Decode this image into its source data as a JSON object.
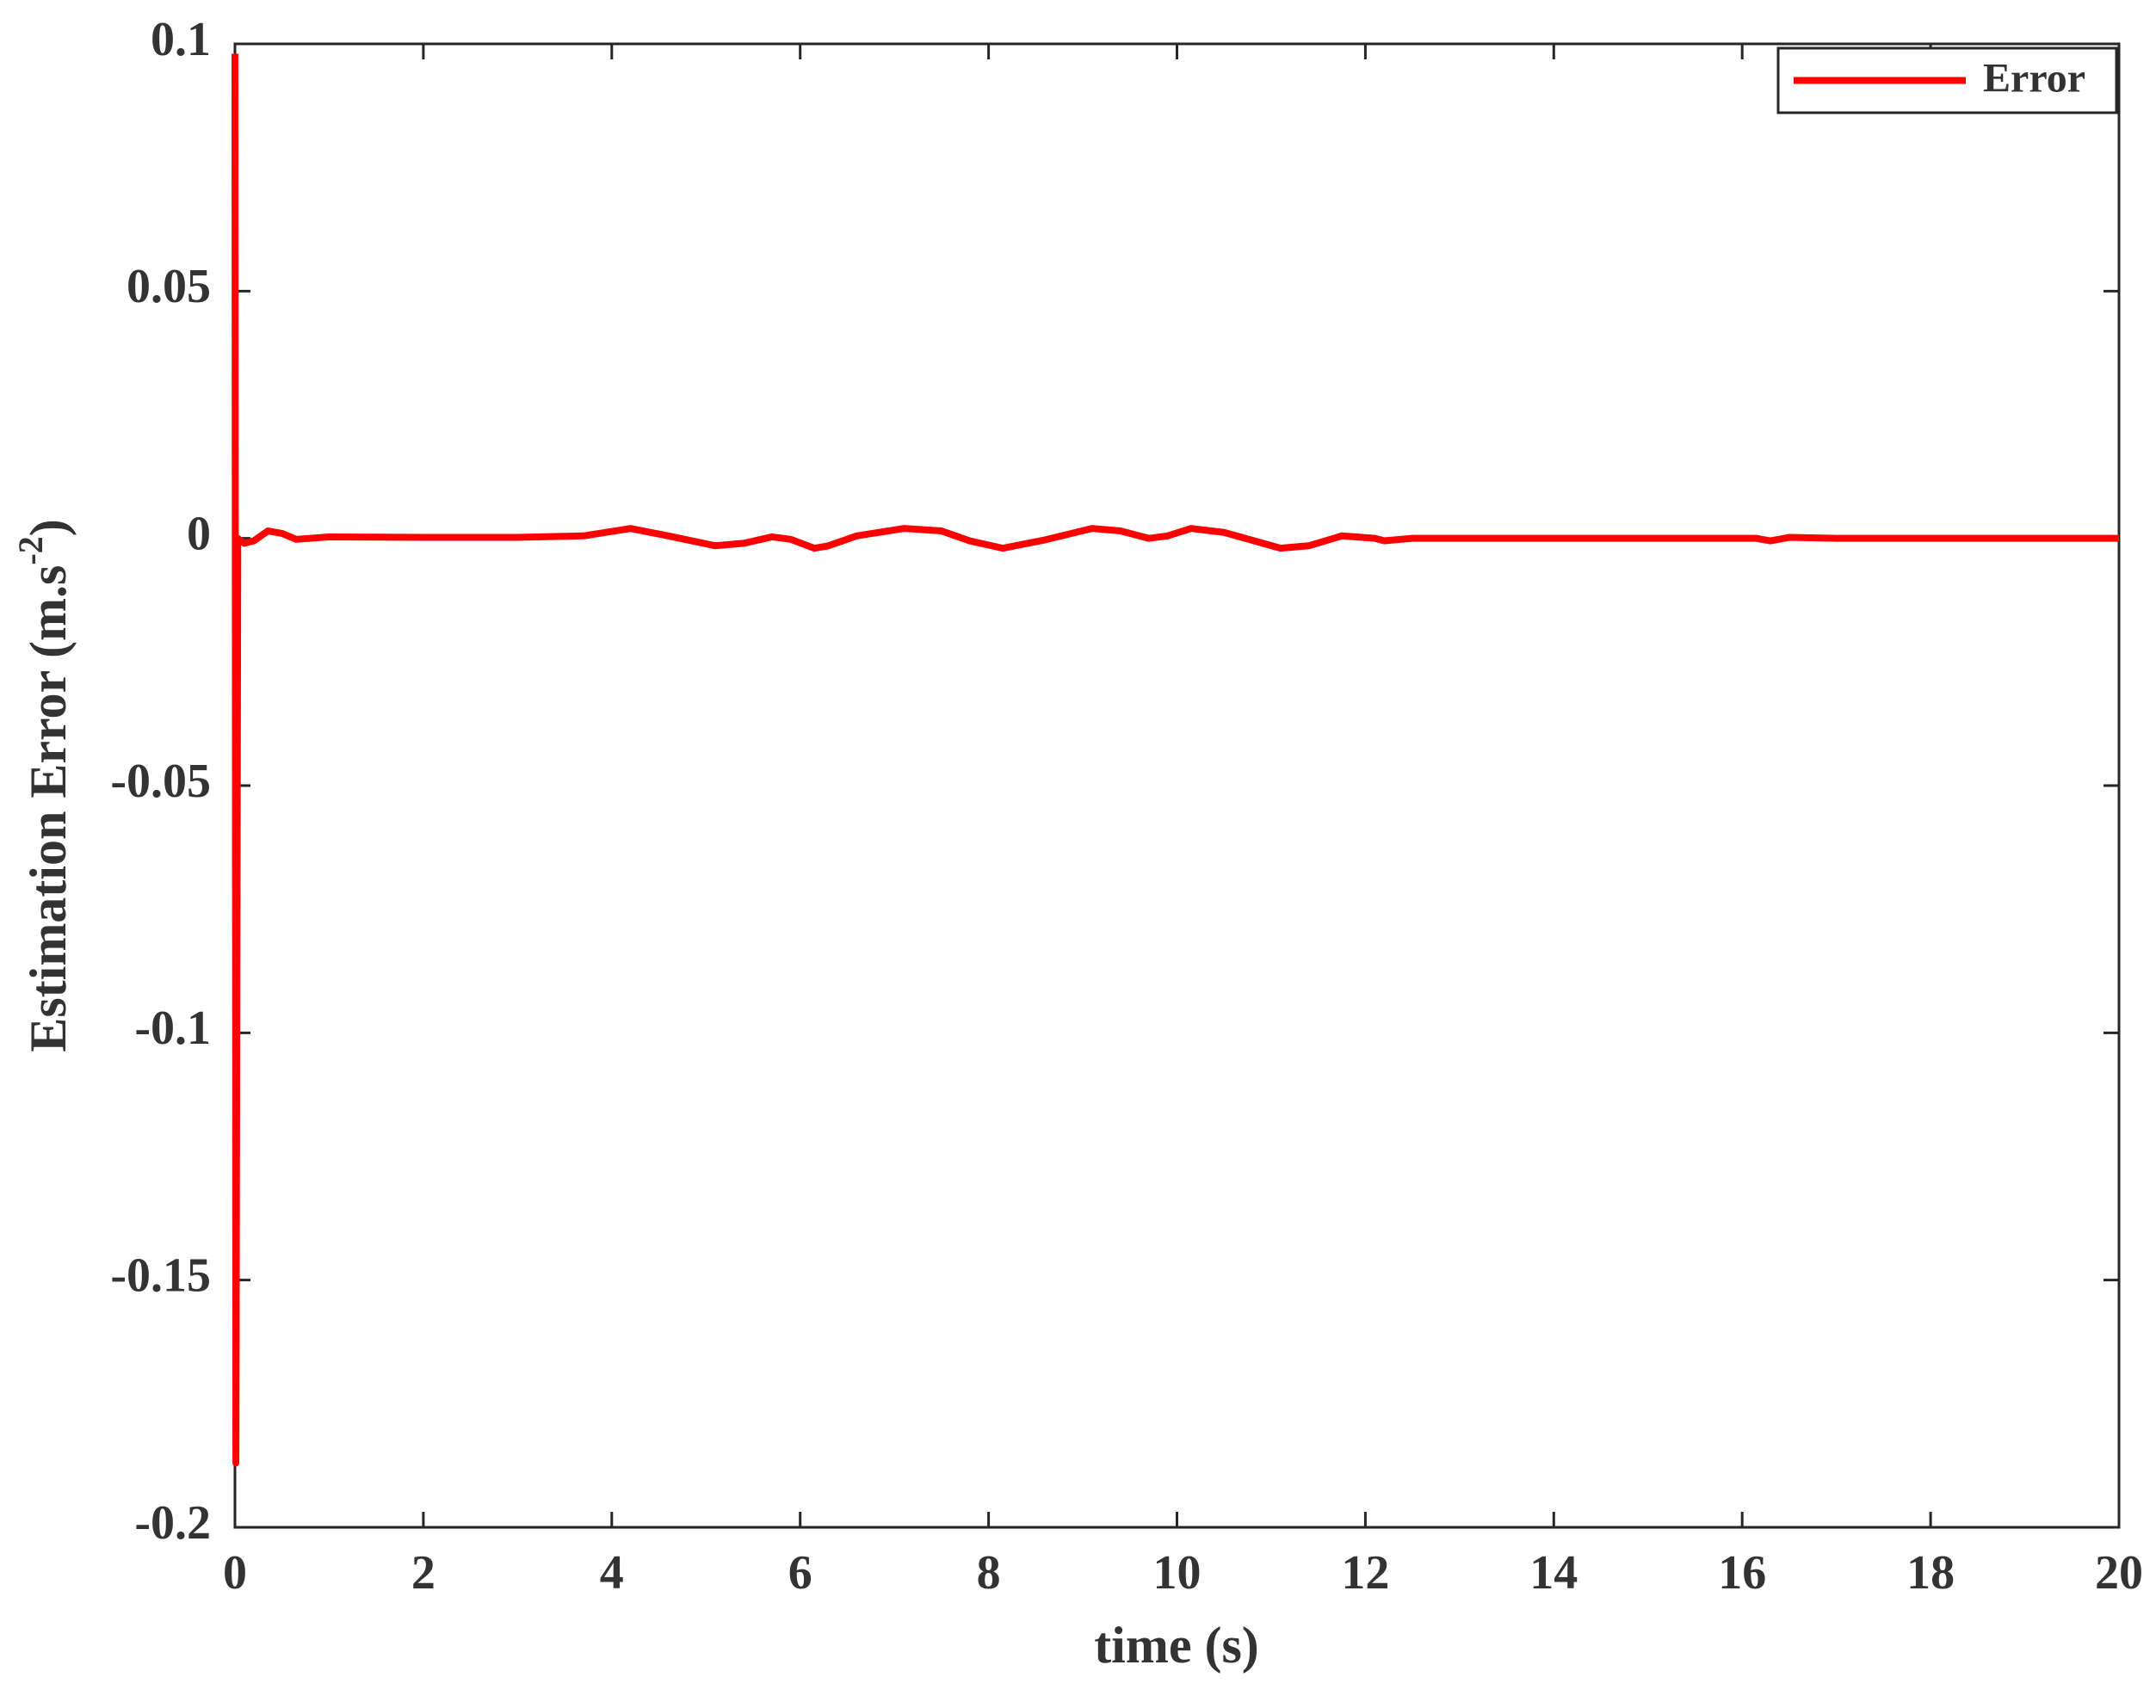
{
  "chart_data": {
    "type": "line",
    "xlabel": "time (s)",
    "ylabel": {
      "text": "Estimation Error (m.s",
      "superscript": "-2",
      "suffix": ")"
    },
    "x": [
      0,
      0.01,
      0.03,
      0.1,
      0.2,
      0.35,
      0.5,
      0.65,
      1,
      2,
      3,
      3.7,
      4.2,
      4.6,
      5.1,
      5.4,
      5.7,
      5.9,
      6.15,
      6.3,
      6.6,
      7.1,
      7.5,
      7.8,
      8.15,
      8.6,
      9.1,
      9.4,
      9.7,
      9.9,
      10.15,
      10.5,
      11.1,
      11.4,
      11.75,
      12.1,
      12.2,
      12.5,
      13,
      16.15,
      16.3,
      16.5,
      17,
      20
    ],
    "series": [
      {
        "name": "Error",
        "color": "#ff0000",
        "values": [
          0.098,
          -0.187,
          0.0,
          -0.001,
          -0.0005,
          0.0015,
          0.001,
          -0.0002,
          0.0003,
          0.0002,
          0.0002,
          0.0005,
          0.002,
          0.0005,
          -0.0015,
          -0.001,
          0.0003,
          -0.0002,
          -0.002,
          -0.0015,
          0.0005,
          0.002,
          0.0015,
          -0.0005,
          -0.002,
          -0.0003,
          0.002,
          0.0015,
          0.0,
          0.0005,
          0.002,
          0.0012,
          -0.002,
          -0.0015,
          0.0005,
          0.0,
          -0.0005,
          0.0,
          0.0,
          0.0,
          -0.0005,
          0.0002,
          0.0,
          0.0
        ]
      }
    ],
    "xlim": [
      0,
      20
    ],
    "ylim": [
      -0.2,
      0.1
    ],
    "xticks": [
      0,
      2,
      4,
      6,
      8,
      10,
      12,
      14,
      16,
      18,
      20
    ],
    "yticks": [
      0.1,
      0.05,
      0,
      -0.05,
      -0.1,
      -0.15,
      -0.2
    ],
    "legend": "upper-right"
  }
}
